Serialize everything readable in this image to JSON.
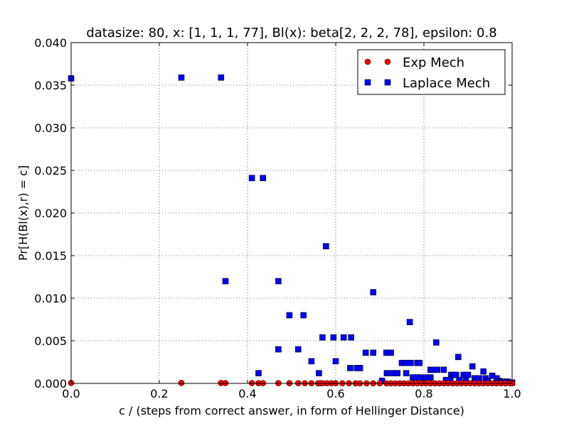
{
  "chart_data": {
    "type": "scatter",
    "title": "datasize: 80, x: [1, 1, 1, 77], Bl(x): beta[2, 2, 2, 78], epsilon: 0.8",
    "xlabel": "c / (steps from correct answer, in form of Hellinger Distance)",
    "ylabel": "Pr[H(Bl(x),r) = c]",
    "xlim": [
      0.0,
      1.0
    ],
    "ylim": [
      0.0,
      0.04
    ],
    "xticks": [
      "0.0",
      "0.2",
      "0.4",
      "0.6",
      "0.8",
      "1.0"
    ],
    "yticks": [
      "0.000",
      "0.005",
      "0.010",
      "0.015",
      "0.020",
      "0.025",
      "0.030",
      "0.035",
      "0.040"
    ],
    "grid": true,
    "legend_position": "top-right",
    "series": [
      {
        "name": "Exp Mech",
        "marker": "circle",
        "color": "#ff0000",
        "points": [
          [
            0.0,
            6e-05
          ],
          [
            0.25,
            6e-05
          ],
          [
            0.34,
            5e-05
          ],
          [
            0.35,
            4e-05
          ],
          [
            0.41,
            4e-05
          ],
          [
            0.425,
            3e-05
          ],
          [
            0.435,
            3e-05
          ],
          [
            0.47,
            3e-05
          ],
          [
            0.495,
            3e-05
          ],
          [
            0.515,
            3e-05
          ],
          [
            0.53,
            2e-05
          ],
          [
            0.545,
            2e-05
          ],
          [
            0.56,
            2e-05
          ],
          [
            0.565,
            2e-05
          ],
          [
            0.57,
            2e-05
          ],
          [
            0.58,
            2e-05
          ],
          [
            0.59,
            2e-05
          ],
          [
            0.6,
            2e-05
          ],
          [
            0.615,
            2e-05
          ],
          [
            0.63,
            2e-05
          ],
          [
            0.645,
            1e-05
          ],
          [
            0.655,
            1e-05
          ],
          [
            0.67,
            1e-05
          ],
          [
            0.685,
            1e-05
          ],
          [
            0.7,
            1e-05
          ],
          [
            0.715,
            1e-05
          ],
          [
            0.725,
            1e-05
          ],
          [
            0.735,
            1e-05
          ],
          [
            0.745,
            1e-05
          ],
          [
            0.755,
            1e-05
          ],
          [
            0.765,
            1e-05
          ],
          [
            0.775,
            1e-05
          ],
          [
            0.785,
            1e-05
          ],
          [
            0.795,
            1e-05
          ],
          [
            0.805,
            1e-05
          ],
          [
            0.815,
            1e-05
          ],
          [
            0.825,
            1e-05
          ],
          [
            0.835,
            1e-05
          ],
          [
            0.845,
            1e-05
          ],
          [
            0.855,
            1e-05
          ],
          [
            0.865,
            1e-05
          ],
          [
            0.875,
            1e-05
          ],
          [
            0.885,
            1e-05
          ],
          [
            0.895,
            1e-05
          ],
          [
            0.905,
            1e-05
          ],
          [
            0.915,
            1e-05
          ],
          [
            0.925,
            1e-05
          ],
          [
            0.935,
            1e-05
          ],
          [
            0.945,
            1e-05
          ],
          [
            0.955,
            1e-05
          ],
          [
            0.965,
            1e-05
          ],
          [
            0.975,
            1e-05
          ],
          [
            0.985,
            1e-05
          ],
          [
            0.995,
            1e-05
          ],
          [
            1.0,
            1e-05
          ]
        ]
      },
      {
        "name": "Laplace Mech",
        "marker": "square",
        "color": "#0000ff",
        "points": [
          [
            0.0,
            0.0358
          ],
          [
            0.25,
            0.0359
          ],
          [
            0.34,
            0.0359
          ],
          [
            0.41,
            0.0241
          ],
          [
            0.435,
            0.0241
          ],
          [
            0.35,
            0.012
          ],
          [
            0.47,
            0.012
          ],
          [
            0.578,
            0.0161
          ],
          [
            0.685,
            0.0107
          ],
          [
            0.495,
            0.008
          ],
          [
            0.527,
            0.008
          ],
          [
            0.768,
            0.0072
          ],
          [
            0.57,
            0.0054
          ],
          [
            0.595,
            0.0054
          ],
          [
            0.618,
            0.0054
          ],
          [
            0.635,
            0.0054
          ],
          [
            0.828,
            0.0048
          ],
          [
            0.47,
            0.004
          ],
          [
            0.515,
            0.004
          ],
          [
            0.668,
            0.0036
          ],
          [
            0.685,
            0.0036
          ],
          [
            0.715,
            0.0036
          ],
          [
            0.725,
            0.0036
          ],
          [
            0.878,
            0.0031
          ],
          [
            0.545,
            0.0026
          ],
          [
            0.6,
            0.0026
          ],
          [
            0.75,
            0.0024
          ],
          [
            0.76,
            0.0024
          ],
          [
            0.77,
            0.0024
          ],
          [
            0.785,
            0.0024
          ],
          [
            0.79,
            0.0024
          ],
          [
            0.91,
            0.002
          ],
          [
            0.633,
            0.0018
          ],
          [
            0.648,
            0.0018
          ],
          [
            0.655,
            0.0018
          ],
          [
            0.815,
            0.0016
          ],
          [
            0.822,
            0.0016
          ],
          [
            0.83,
            0.0016
          ],
          [
            0.845,
            0.0016
          ],
          [
            0.935,
            0.0014
          ],
          [
            0.425,
            0.0012
          ],
          [
            0.562,
            0.0012
          ],
          [
            0.716,
            0.0012
          ],
          [
            0.73,
            0.0012
          ],
          [
            0.74,
            0.0012
          ],
          [
            0.76,
            0.0012
          ],
          [
            0.862,
            0.001
          ],
          [
            0.868,
            0.001
          ],
          [
            0.873,
            0.001
          ],
          [
            0.89,
            0.001
          ],
          [
            0.9,
            0.001
          ],
          [
            0.955,
            0.0009
          ],
          [
            0.775,
            0.0007
          ],
          [
            0.785,
            0.0007
          ],
          [
            0.792,
            0.0007
          ],
          [
            0.805,
            0.0007
          ],
          [
            0.815,
            0.0007
          ],
          [
            0.915,
            0.0006
          ],
          [
            0.925,
            0.0006
          ],
          [
            0.94,
            0.0006
          ],
          [
            0.965,
            0.0006
          ],
          [
            0.705,
            0.0003
          ],
          [
            0.85,
            0.0004
          ],
          [
            0.86,
            0.0004
          ],
          [
            0.88,
            0.0004
          ],
          [
            0.895,
            0.0004
          ],
          [
            0.92,
            0.0003
          ],
          [
            0.945,
            0.0003
          ],
          [
            0.97,
            0.0003
          ],
          [
            0.975,
            0.0002
          ],
          [
            0.98,
            0.0002
          ],
          [
            0.985,
            0.0002
          ],
          [
            0.99,
            0.0002
          ],
          [
            0.995,
            0.0001
          ],
          [
            1.0,
            0.0001
          ]
        ]
      }
    ]
  }
}
